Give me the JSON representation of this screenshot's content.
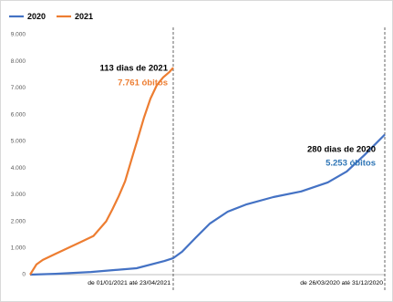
{
  "chart_data": {
    "type": "line",
    "series": [
      {
        "name": "2020",
        "color": "#4472c4",
        "x": [
          0,
          20,
          48,
          84,
          106,
          113,
          120,
          131,
          142,
          156,
          171,
          192,
          214,
          235,
          250,
          264,
          280
        ],
        "values": [
          0,
          30,
          100,
          240,
          510,
          620,
          860,
          1400,
          1920,
          2360,
          2640,
          2910,
          3120,
          3460,
          3870,
          4490,
          5253
        ]
      },
      {
        "name": "2021",
        "color": "#ed7d31",
        "x": [
          0,
          5,
          10,
          20,
          30,
          40,
          50,
          60,
          65,
          70,
          75,
          80,
          85,
          90,
          95,
          100,
          105,
          110,
          113
        ],
        "values": [
          0,
          380,
          550,
          780,
          1000,
          1220,
          1450,
          2000,
          2450,
          2950,
          3500,
          4300,
          5100,
          5900,
          6600,
          7100,
          7400,
          7600,
          7761
        ]
      }
    ],
    "xlim": [
      0,
      280
    ],
    "ylim": [
      0,
      9000
    ],
    "yticks": [
      0,
      {
        "value": 1000,
        "label": "1.000"
      },
      {
        "value": 2000,
        "label": "2.000"
      },
      {
        "value": 3000,
        "label": "3.000"
      },
      {
        "value": 4000,
        "label": "4.000"
      },
      {
        "value": 5000,
        "label": "5.000"
      },
      {
        "value": 6000,
        "label": "6.000"
      },
      {
        "value": 7000,
        "label": "7.000"
      },
      {
        "value": 8000,
        "label": "8.000"
      },
      {
        "value": 9000,
        "label": "9.000"
      }
    ],
    "grid": false,
    "legend": "top-left",
    "annotations": [
      {
        "text": "113 dias de 2021",
        "color": "#000000"
      },
      {
        "text": "7.761 óbitos",
        "color": "#ed7d31"
      },
      {
        "text": "280 dias de 2020",
        "color": "#000000"
      },
      {
        "text": "5.253 óbitos",
        "color": "#2e75b6"
      },
      {
        "text": "de 01/01/2021 até 23/04/2021",
        "color": "#000000"
      },
      {
        "text": "de 26/03/2020 até 31/12/2020",
        "color": "#000000"
      }
    ]
  }
}
